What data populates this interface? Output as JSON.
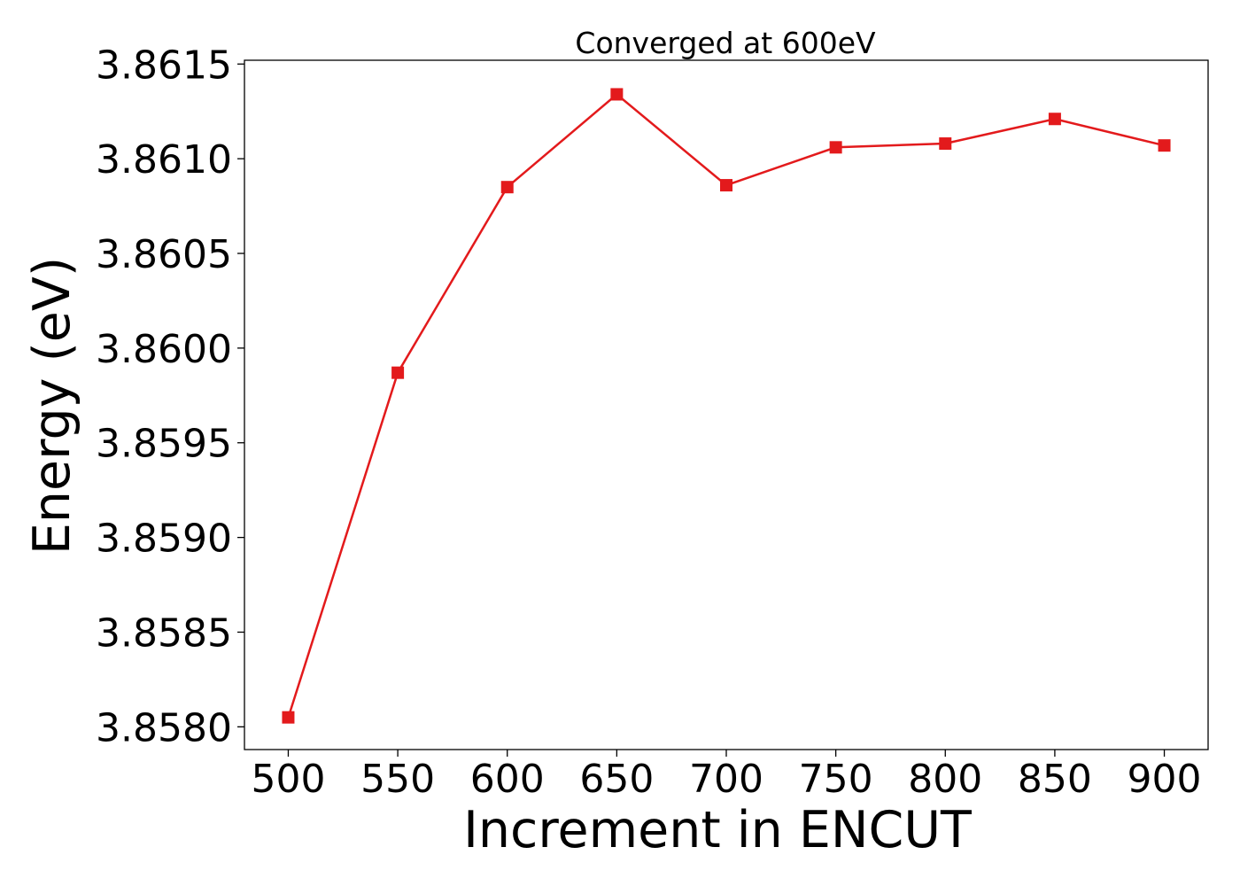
{
  "chart_data": {
    "type": "line",
    "title": "Converged at 600eV",
    "xlabel": "Increment in ENCUT",
    "ylabel": "Energy (eV)",
    "x_ticks": [
      "500",
      "550",
      "600",
      "650",
      "700",
      "750",
      "800",
      "850",
      "900"
    ],
    "y_ticks": [
      "3.8580",
      "3.8585",
      "3.8590",
      "3.8595",
      "3.8600",
      "3.8605",
      "3.8610",
      "3.8615"
    ],
    "xlim": [
      480,
      920
    ],
    "ylim": [
      3.85788,
      3.86152
    ],
    "grid": false,
    "series": [
      {
        "color": "#e31a1c",
        "marker": "square",
        "x": [
          500,
          550,
          600,
          650,
          700,
          750,
          800,
          850,
          900
        ],
        "y": [
          3.85805,
          3.85987,
          3.86085,
          3.86134,
          3.86086,
          3.86106,
          3.86108,
          3.86121,
          3.86107
        ]
      }
    ]
  }
}
